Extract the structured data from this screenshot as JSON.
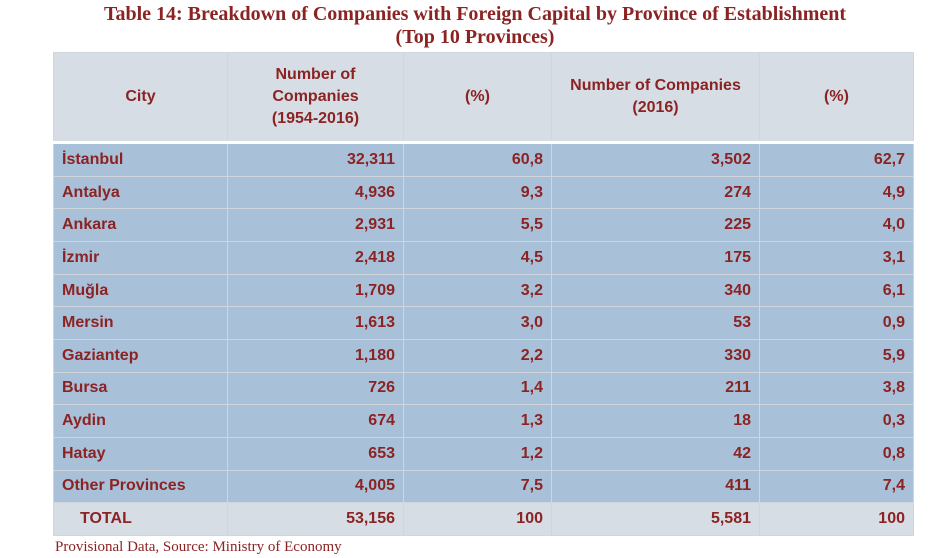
{
  "title_line1": "Table 14: Breakdown of Companies with Foreign Capital by Province of Establishment",
  "title_line2": "(Top 10 Provinces)",
  "headers": {
    "city": "City",
    "companies_1954_2016_line1": "Number of Companies",
    "companies_1954_2016_line2": "(1954-2016)",
    "pct_1": "(%)",
    "companies_2016_line1": "Number of Companies",
    "companies_2016_line2": "(2016)",
    "pct_2": "(%)"
  },
  "rows": [
    {
      "city": "İstanbul",
      "n1": "32,311",
      "p1": "60,8",
      "n2": "3,502",
      "p2": "62,7"
    },
    {
      "city": "Antalya",
      "n1": "4,936",
      "p1": "9,3",
      "n2": "274",
      "p2": "4,9"
    },
    {
      "city": "Ankara",
      "n1": "2,931",
      "p1": "5,5",
      "n2": "225",
      "p2": "4,0"
    },
    {
      "city": "İzmir",
      "n1": "2,418",
      "p1": "4,5",
      "n2": "175",
      "p2": "3,1"
    },
    {
      "city": "Muğla",
      "n1": "1,709",
      "p1": "3,2",
      "n2": "340",
      "p2": "6,1"
    },
    {
      "city": "Mersin",
      "n1": "1,613",
      "p1": "3,0",
      "n2": "53",
      "p2": "0,9"
    },
    {
      "city": "Gaziantep",
      "n1": "1,180",
      "p1": "2,2",
      "n2": "330",
      "p2": "5,9"
    },
    {
      "city": "Bursa",
      "n1": "726",
      "p1": "1,4",
      "n2": "211",
      "p2": "3,8"
    },
    {
      "city": "Aydin",
      "n1": "674",
      "p1": "1,3",
      "n2": "18",
      "p2": "0,3"
    },
    {
      "city": "Hatay",
      "n1": "653",
      "p1": "1,2",
      "n2": "42",
      "p2": "0,8"
    },
    {
      "city": "Other Provinces",
      "n1": "4,005",
      "p1": "7,5",
      "n2": "411",
      "p2": "7,4"
    }
  ],
  "total": {
    "city": "TOTAL",
    "n1": "53,156",
    "p1": "100",
    "n2": "5,581",
    "p2": "100"
  },
  "source": "Provisional Data, Source: Ministry of Economy",
  "colors": {
    "text": "#8b2323",
    "header_bg": "#d6dde4",
    "row_bg": "#a9c0d9"
  }
}
